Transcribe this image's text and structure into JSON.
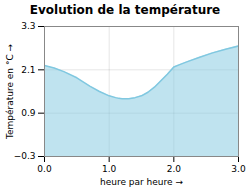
{
  "chart_data": {
    "type": "area",
    "title": "Evolution de la température",
    "xlabel": "heure par heure",
    "ylabel": "Température en °C",
    "x": [
      0,
      0.15,
      0.3,
      0.5,
      0.7,
      0.85,
      1.0,
      1.1,
      1.15,
      1.2,
      1.3,
      1.4,
      1.5,
      1.6,
      1.7,
      1.8,
      1.9,
      2.0,
      2.1,
      2.2,
      2.4,
      2.6,
      2.8,
      3.0
    ],
    "values": [
      2.22,
      2.15,
      2.05,
      1.88,
      1.65,
      1.5,
      1.38,
      1.33,
      1.31,
      1.3,
      1.3,
      1.33,
      1.38,
      1.48,
      1.62,
      1.8,
      1.98,
      2.18,
      2.25,
      2.32,
      2.45,
      2.57,
      2.67,
      2.76
    ],
    "color": "#80c8e0",
    "xlim": [
      0,
      3
    ],
    "ylim": [
      -0.3,
      3.3
    ],
    "xticks": [
      0,
      1,
      2,
      3
    ],
    "yticks": [
      -0.3,
      0.9,
      2.1,
      3.3
    ],
    "grid": true
  }
}
